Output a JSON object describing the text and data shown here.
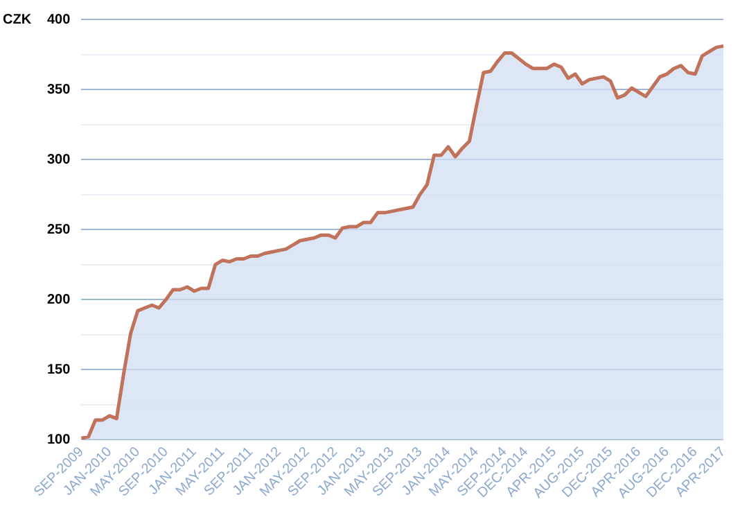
{
  "chart_data": {
    "type": "area",
    "ylabel": "CZK",
    "categories": [
      "SEP-2009",
      null,
      null,
      null,
      "JAN-2010",
      null,
      null,
      null,
      "MAY-2010",
      null,
      null,
      null,
      "SEP-2010",
      null,
      null,
      null,
      "JAN-2011",
      null,
      null,
      null,
      "MAY-2011",
      null,
      null,
      null,
      "SEP-2011",
      null,
      null,
      null,
      "JAN-2012",
      null,
      null,
      null,
      "MAY-2012",
      null,
      null,
      null,
      "SEP-2012",
      null,
      null,
      null,
      "JAN-2013",
      null,
      null,
      null,
      "MAY-2013",
      null,
      null,
      null,
      "SEP-2013",
      null,
      null,
      null,
      "JAN-2014",
      null,
      null,
      null,
      "MAY-2014",
      null,
      null,
      null,
      "SEP-2014",
      null,
      null,
      "DEC-2014",
      null,
      null,
      null,
      "APR-2015",
      null,
      null,
      null,
      "AUG-2015",
      null,
      null,
      null,
      "DEC-2015",
      null,
      null,
      null,
      "APR-2016",
      null,
      null,
      null,
      "AUG-2016",
      null,
      null,
      null,
      "DEC-2016",
      null,
      null,
      null,
      "APR-2017"
    ],
    "series": [
      {
        "color": "#c0735a",
        "values": [
          101,
          102,
          114,
          114,
          117,
          115,
          147,
          176,
          192,
          194,
          196,
          194,
          200,
          207,
          207,
          209,
          206,
          208,
          208,
          225,
          228,
          227,
          229,
          229,
          231,
          231,
          233,
          234,
          235,
          236,
          239,
          242,
          243,
          244,
          246,
          246,
          244,
          251,
          252,
          252,
          255,
          255,
          262,
          262,
          263,
          264,
          265,
          266,
          275,
          282,
          303,
          303,
          309,
          302,
          308,
          313,
          338,
          362,
          363,
          370,
          376,
          376,
          372,
          368,
          365,
          365,
          365,
          368,
          366,
          358,
          361,
          354,
          357,
          358,
          359,
          356,
          344,
          346,
          351,
          348,
          345,
          352,
          359,
          361,
          365,
          367,
          362,
          361,
          374,
          377,
          380,
          381
        ]
      }
    ],
    "ylim": [
      100,
      400
    ],
    "yticks": [
      100,
      {
        "value": 125,
        "label": null
      },
      150,
      {
        "value": 175,
        "label": null
      },
      200,
      {
        "value": 225,
        "label": null
      },
      250,
      {
        "value": 275,
        "label": null
      },
      300,
      {
        "value": 325,
        "label": null
      },
      350,
      {
        "value": 375,
        "label": null
      },
      400
    ],
    "grid": "y",
    "legend": false
  }
}
